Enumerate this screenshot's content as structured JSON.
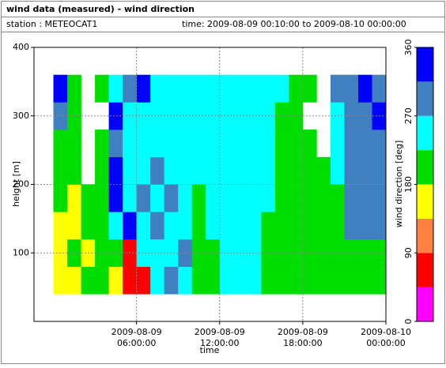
{
  "chart_data": {
    "type": "heatmap",
    "title": "wind data (measured) - wind direction",
    "station": "station : METEOCAT1",
    "period": "time: 2009-08-09 00:10:00 to 2009-08-10 00:00:00",
    "xlabel": "time",
    "ylabel": "height [m]",
    "xlim": [
      -1.4,
      24
    ],
    "xticks": [
      {
        "value": 6,
        "label": "2009-08-09 06:00:00"
      },
      {
        "value": 12,
        "label": "2009-08-09 12:00:00"
      },
      {
        "value": 18,
        "label": "2009-08-09 18:00:00"
      },
      {
        "value": 24,
        "label": "2009-08-10 00:00:00"
      }
    ],
    "ylim": [
      0,
      400
    ],
    "yticks": [
      100,
      200,
      300,
      400
    ],
    "grid": true,
    "x_bins": [
      0,
      1,
      2,
      3,
      4,
      5,
      6,
      7,
      8,
      9,
      10,
      11,
      12,
      13,
      14,
      15,
      16,
      17,
      18,
      19,
      20,
      21,
      22,
      23,
      24
    ],
    "y_bins": [
      40,
      80,
      120,
      160,
      200,
      240,
      280,
      320,
      360
    ],
    "values": [
      [
        160,
        160,
        200,
        200,
        160,
        70,
        70,
        250,
        290,
        250,
        200,
        200,
        250,
        250,
        250,
        200,
        200,
        200,
        200,
        200,
        200,
        200,
        200,
        200
      ],
      [
        160,
        200,
        160,
        200,
        200,
        70,
        250,
        250,
        250,
        290,
        200,
        200,
        250,
        250,
        250,
        200,
        200,
        200,
        200,
        200,
        200,
        200,
        200,
        200
      ],
      [
        160,
        160,
        200,
        200,
        250,
        340,
        250,
        290,
        250,
        250,
        200,
        250,
        250,
        250,
        250,
        200,
        200,
        200,
        200,
        200,
        200,
        290,
        290,
        290
      ],
      [
        200,
        160,
        200,
        200,
        340,
        250,
        290,
        250,
        290,
        250,
        200,
        250,
        250,
        250,
        250,
        250,
        200,
        200,
        200,
        200,
        200,
        290,
        290,
        290
      ],
      [
        200,
        200,
        null,
        200,
        340,
        250,
        250,
        290,
        250,
        250,
        250,
        250,
        250,
        250,
        250,
        250,
        200,
        200,
        200,
        200,
        250,
        290,
        290,
        290
      ],
      [
        200,
        200,
        null,
        200,
        290,
        250,
        250,
        250,
        250,
        250,
        250,
        250,
        250,
        250,
        250,
        250,
        200,
        200,
        200,
        null,
        250,
        290,
        290,
        290
      ],
      [
        290,
        200,
        null,
        null,
        340,
        250,
        250,
        250,
        250,
        250,
        250,
        250,
        250,
        250,
        250,
        250,
        200,
        200,
        null,
        null,
        250,
        290,
        290,
        340
      ],
      [
        340,
        200,
        null,
        200,
        250,
        290,
        340,
        250,
        250,
        250,
        250,
        250,
        250,
        250,
        250,
        250,
        250,
        200,
        200,
        null,
        290,
        290,
        340,
        290
      ]
    ],
    "colorbar": {
      "label": "wind direction [deg]",
      "bins": [
        0,
        45,
        90,
        135,
        180,
        225,
        270,
        315,
        360
      ],
      "colors": [
        "#ff00ff",
        "#ff0000",
        "#ff8040",
        "#ffff00",
        "#00dd00",
        "#00ffff",
        "#4080c0",
        "#0000ff"
      ],
      "ticks": [
        0,
        90,
        180,
        270,
        360
      ]
    }
  }
}
